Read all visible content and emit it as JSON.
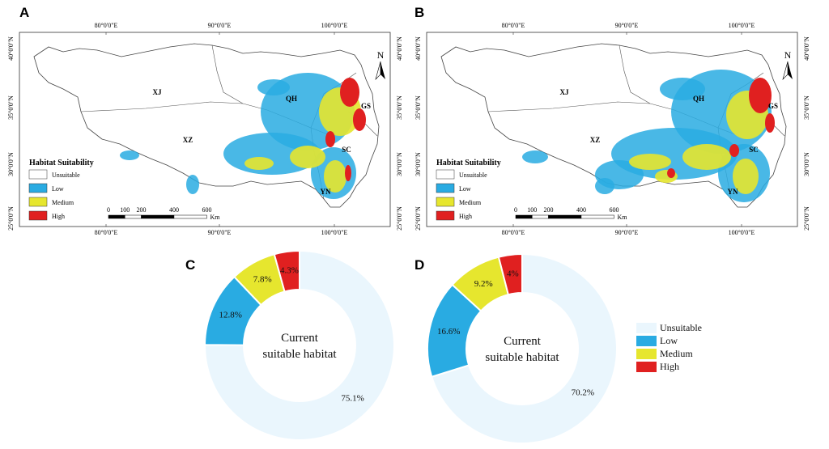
{
  "panels": {
    "a": "A",
    "b": "B",
    "c": "C",
    "d": "D"
  },
  "maps": {
    "lon_ticks": [
      "80°0'0\"E",
      "90°0'0\"E",
      "100°0'0\"E"
    ],
    "lat_ticks": [
      "40°0'0\"N",
      "35°0'0\"N",
      "30°0'0\"N",
      "25°0'0\"N"
    ],
    "regions": [
      "XJ",
      "QH",
      "XZ",
      "GS",
      "SC",
      "YN"
    ],
    "north_label": "N",
    "legend_title": "Habitat Suitability",
    "scale_labels": [
      "0",
      "100",
      "200",
      "400",
      "600"
    ],
    "scale_unit": "Km"
  },
  "categories": [
    "Unsuitable",
    "Low",
    "Medium",
    "High"
  ],
  "colors": {
    "unsuitable_map": "#ffffff",
    "unsuitable_donut": "#eaf6fd",
    "low": "#29abe2",
    "medium": "#e6e62e",
    "high": "#e02020"
  },
  "chart_data": [
    {
      "type": "pie",
      "panel": "C",
      "center_text": [
        "Current",
        "suitable habitat"
      ],
      "categories": [
        "Unsuitable",
        "Low",
        "Medium",
        "High"
      ],
      "values": [
        75.1,
        12.8,
        7.8,
        4.3
      ],
      "labels": [
        "75.1%",
        "12.8%",
        "7.8%",
        "4.3%"
      ]
    },
    {
      "type": "pie",
      "panel": "D",
      "center_text": [
        "Current",
        "suitable habitat"
      ],
      "categories": [
        "Unsuitable",
        "Low",
        "Medium",
        "High"
      ],
      "values": [
        70.2,
        16.6,
        9.2,
        4.0
      ],
      "labels": [
        "70.2%",
        "16.6%",
        "9.2%",
        "4%"
      ]
    }
  ]
}
